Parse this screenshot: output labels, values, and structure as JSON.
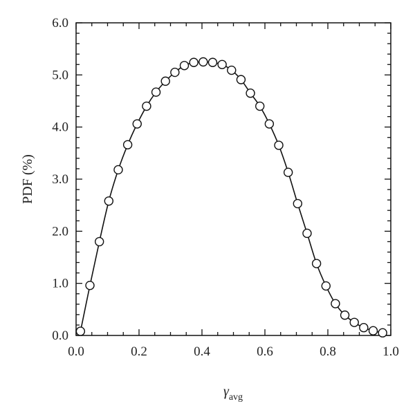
{
  "chart_data": {
    "type": "line",
    "title": "",
    "xlabel": "γ",
    "xlabel_subscript": "avg",
    "ylabel": "PDF (%)",
    "xlim": [
      0.0,
      1.0
    ],
    "ylim": [
      0.0,
      6.0
    ],
    "x_ticks": [
      0.0,
      0.2,
      0.4,
      0.6,
      0.8,
      1.0
    ],
    "x_tick_labels": [
      "0.0",
      "0.2",
      "0.4",
      "0.6",
      "0.8",
      "1.0"
    ],
    "y_ticks": [
      0.0,
      1.0,
      2.0,
      3.0,
      4.0,
      5.0,
      6.0
    ],
    "y_tick_labels": [
      "0.0",
      "1.0",
      "2.0",
      "3.0",
      "4.0",
      "5.0",
      "6.0"
    ],
    "grid": false,
    "legend": "none",
    "markers": "open-circle",
    "line_color": "#111111",
    "series": [
      {
        "x": [
          0.014,
          0.044,
          0.074,
          0.104,
          0.134,
          0.164,
          0.194,
          0.224,
          0.254,
          0.284,
          0.314,
          0.344,
          0.374,
          0.404,
          0.434,
          0.464,
          0.494,
          0.524,
          0.554,
          0.584,
          0.614,
          0.644,
          0.674,
          0.704,
          0.734,
          0.764,
          0.794,
          0.824,
          0.854,
          0.884,
          0.914,
          0.944,
          0.974
        ],
        "values": [
          0.08,
          0.96,
          1.8,
          2.58,
          3.18,
          3.66,
          4.06,
          4.4,
          4.67,
          4.88,
          5.05,
          5.18,
          5.24,
          5.25,
          5.24,
          5.2,
          5.09,
          4.91,
          4.65,
          4.4,
          4.06,
          3.65,
          3.13,
          2.53,
          1.96,
          1.38,
          0.95,
          0.61,
          0.39,
          0.25,
          0.15,
          0.09,
          0.05
        ]
      }
    ]
  }
}
